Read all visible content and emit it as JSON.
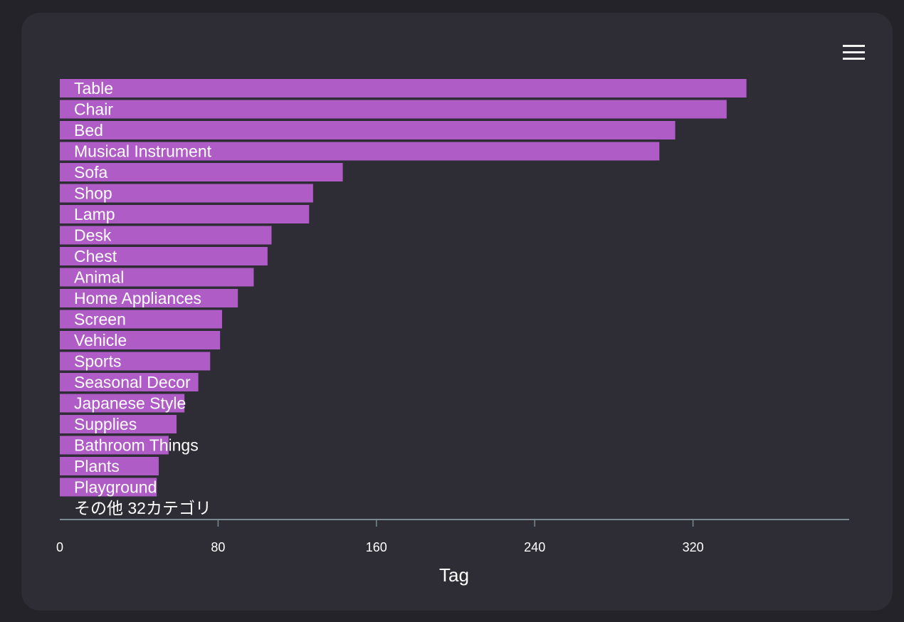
{
  "colors": {
    "bar": "#b05cc6",
    "background": "#2e2d36",
    "axis": "#7a8a90",
    "text": "#ffffff"
  },
  "toolbar": {
    "menu_icon": "hamburger-menu-icon"
  },
  "chart_data": {
    "type": "bar",
    "orientation": "horizontal",
    "categories": [
      "Table",
      "Chair",
      "Bed",
      "Musical Instrument",
      "Sofa",
      "Shop",
      "Lamp",
      "Desk",
      "Chest",
      "Animal",
      "Home Appliances",
      "Screen",
      "Vehicle",
      "Sports",
      "Seasonal Decor",
      "Japanese Style",
      "Supplies",
      "Bathroom Things",
      "Plants",
      "Playground"
    ],
    "values": [
      347,
      337,
      311,
      303,
      143,
      128,
      126,
      107,
      105,
      98,
      90,
      82,
      81,
      76,
      70,
      63,
      59,
      55,
      50,
      49
    ],
    "other_label": "その他 32カテゴリ",
    "xlabel": "Tag",
    "ylabel": "",
    "xlim": [
      0,
      400
    ],
    "xticks": [
      0,
      80,
      160,
      240,
      320
    ],
    "grid": false,
    "legend": "none"
  }
}
